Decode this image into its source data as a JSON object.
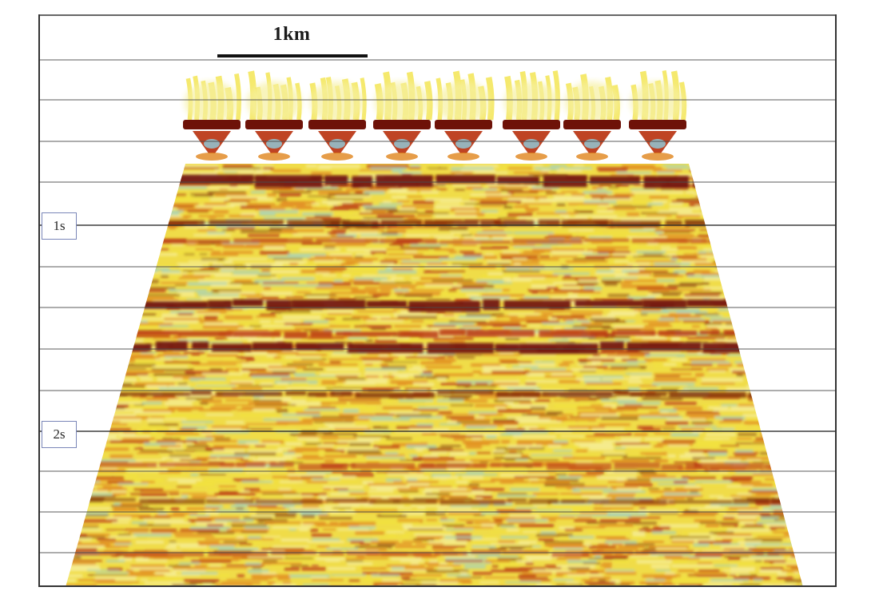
{
  "scale_bar": {
    "label": "1km"
  },
  "time_labels": [
    {
      "text": "1s"
    },
    {
      "text": "2s"
    }
  ],
  "colors": {
    "background": "#ffffff",
    "gridline": "#4a4a4a",
    "frame": "#333333",
    "wiggle_dark": "#6e1208",
    "wiggle_red": "#b8300c",
    "wiggle_orange": "#e0841c",
    "wiggle_yellow": "#f2e23c",
    "wiggle_pale": "#f6f0a0",
    "wiggle_cyan": "#8fcfe0"
  },
  "section": {
    "horizontal_gridlines": 14,
    "trace_groups": 8,
    "strong_reflectors": 6
  }
}
